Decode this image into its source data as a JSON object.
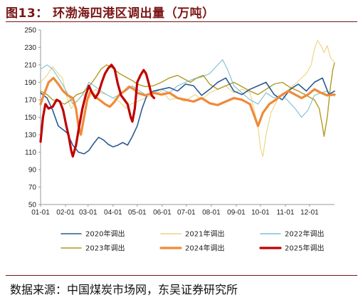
{
  "header": {
    "title": "图13：  环渤海四港区调出量（万吨）"
  },
  "footer": {
    "source": "数据来源：中国煤炭市场网，东吴证券研究所"
  },
  "colors": {
    "title": "#7a1616",
    "s2020": "#2b5a92",
    "s2021": "#efd27c",
    "s2022": "#7bbfd5",
    "s2023": "#b29a23",
    "s2024": "#ef8a3a",
    "s2025": "#c00000"
  },
  "chart_data": {
    "type": "line",
    "title": "环渤海四港区调出量（万吨）",
    "xlabel": "",
    "ylabel": "",
    "xlim": [
      0,
      365
    ],
    "ylim": [
      50,
      250
    ],
    "y_ticks": [
      50,
      70,
      90,
      110,
      130,
      150,
      170,
      190,
      210,
      230,
      250
    ],
    "x_ticks": [
      {
        "label": "01-01",
        "day": 0
      },
      {
        "label": "02-01",
        "day": 31
      },
      {
        "label": "03-01",
        "day": 59
      },
      {
        "label": "04-01",
        "day": 90
      },
      {
        "label": "05-01",
        "day": 120
      },
      {
        "label": "06-01",
        "day": 151
      },
      {
        "label": "07-01",
        "day": 181
      },
      {
        "label": "08-01",
        "day": 212
      },
      {
        "label": "09-01",
        "day": 243
      },
      {
        "label": "10-01",
        "day": 273
      },
      {
        "label": "11-01",
        "day": 304
      },
      {
        "label": "12-01",
        "day": 334
      }
    ],
    "legend_position": "bottom",
    "series": [
      {
        "name": "2020年调出",
        "key": "s2020",
        "width": 1.6,
        "points": [
          [
            0,
            178
          ],
          [
            8,
            172
          ],
          [
            15,
            158
          ],
          [
            22,
            140
          ],
          [
            29,
            135
          ],
          [
            33,
            132
          ],
          [
            40,
            118
          ],
          [
            47,
            110
          ],
          [
            54,
            108
          ],
          [
            60,
            112
          ],
          [
            66,
            120
          ],
          [
            72,
            127
          ],
          [
            78,
            124
          ],
          [
            84,
            119
          ],
          [
            90,
            116
          ],
          [
            96,
            118
          ],
          [
            102,
            121
          ],
          [
            108,
            118
          ],
          [
            114,
            128
          ],
          [
            120,
            140
          ],
          [
            126,
            160
          ],
          [
            132,
            175
          ],
          [
            140,
            180
          ],
          [
            150,
            182
          ],
          [
            160,
            184
          ],
          [
            170,
            180
          ],
          [
            180,
            188
          ],
          [
            190,
            186
          ],
          [
            200,
            175
          ],
          [
            210,
            182
          ],
          [
            220,
            190
          ],
          [
            230,
            195
          ],
          [
            240,
            180
          ],
          [
            250,
            176
          ],
          [
            260,
            182
          ],
          [
            270,
            186
          ],
          [
            280,
            190
          ],
          [
            290,
            176
          ],
          [
            300,
            170
          ],
          [
            310,
            182
          ],
          [
            320,
            188
          ],
          [
            330,
            180
          ],
          [
            340,
            190
          ],
          [
            350,
            195
          ],
          [
            358,
            176
          ],
          [
            365,
            180
          ]
        ]
      },
      {
        "name": "2021年调出",
        "key": "s2021",
        "width": 1.1,
        "points": [
          [
            0,
            190
          ],
          [
            8,
            198
          ],
          [
            15,
            208
          ],
          [
            20,
            202
          ],
          [
            27,
            195
          ],
          [
            33,
            172
          ],
          [
            38,
            160
          ],
          [
            45,
            168
          ],
          [
            52,
            176
          ],
          [
            60,
            172
          ],
          [
            68,
            182
          ],
          [
            75,
            178
          ],
          [
            82,
            176
          ],
          [
            90,
            172
          ],
          [
            98,
            168
          ],
          [
            106,
            160
          ],
          [
            112,
            165
          ],
          [
            120,
            168
          ],
          [
            130,
            172
          ],
          [
            140,
            176
          ],
          [
            150,
            180
          ],
          [
            160,
            170
          ],
          [
            170,
            172
          ],
          [
            178,
            168
          ],
          [
            185,
            172
          ],
          [
            192,
            176
          ],
          [
            200,
            170
          ],
          [
            210,
            178
          ],
          [
            220,
            182
          ],
          [
            230,
            186
          ],
          [
            240,
            178
          ],
          [
            250,
            182
          ],
          [
            260,
            178
          ],
          [
            270,
            140
          ],
          [
            273,
            115
          ],
          [
            276,
            105
          ],
          [
            280,
            130
          ],
          [
            286,
            155
          ],
          [
            294,
            170
          ],
          [
            300,
            176
          ],
          [
            308,
            182
          ],
          [
            316,
            188
          ],
          [
            324,
            195
          ],
          [
            330,
            200
          ],
          [
            336,
            210
          ],
          [
            340,
            228
          ],
          [
            344,
            238
          ],
          [
            348,
            232
          ],
          [
            352,
            224
          ],
          [
            356,
            232
          ],
          [
            360,
            218
          ],
          [
            365,
            213
          ]
        ]
      },
      {
        "name": "2022年调出",
        "key": "s2022",
        "width": 1.1,
        "points": [
          [
            0,
            205
          ],
          [
            8,
            210
          ],
          [
            15,
            205
          ],
          [
            20,
            198
          ],
          [
            27,
            188
          ],
          [
            33,
            178
          ],
          [
            40,
            165
          ],
          [
            47,
            170
          ],
          [
            54,
            178
          ],
          [
            60,
            190
          ],
          [
            68,
            185
          ],
          [
            75,
            180
          ],
          [
            82,
            176
          ],
          [
            90,
            172
          ],
          [
            98,
            176
          ],
          [
            106,
            180
          ],
          [
            114,
            186
          ],
          [
            120,
            182
          ],
          [
            130,
            176
          ],
          [
            140,
            178
          ],
          [
            150,
            182
          ],
          [
            160,
            178
          ],
          [
            170,
            186
          ],
          [
            180,
            190
          ],
          [
            190,
            194
          ],
          [
            200,
            196
          ],
          [
            210,
            200
          ],
          [
            220,
            210
          ],
          [
            226,
            216
          ],
          [
            232,
            205
          ],
          [
            240,
            186
          ],
          [
            250,
            178
          ],
          [
            260,
            170
          ],
          [
            270,
            165
          ],
          [
            280,
            178
          ],
          [
            290,
            172
          ],
          [
            300,
            176
          ],
          [
            308,
            168
          ],
          [
            316,
            160
          ],
          [
            324,
            150
          ],
          [
            332,
            158
          ],
          [
            340,
            175
          ],
          [
            348,
            178
          ],
          [
            356,
            180
          ],
          [
            365,
            174
          ]
        ]
      },
      {
        "name": "2023年调出",
        "key": "s2023",
        "width": 1.4,
        "points": [
          [
            0,
            180
          ],
          [
            8,
            176
          ],
          [
            15,
            170
          ],
          [
            22,
            168
          ],
          [
            30,
            165
          ],
          [
            38,
            170
          ],
          [
            45,
            176
          ],
          [
            52,
            178
          ],
          [
            60,
            185
          ],
          [
            68,
            195
          ],
          [
            75,
            205
          ],
          [
            82,
            210
          ],
          [
            90,
            206
          ],
          [
            98,
            200
          ],
          [
            106,
            196
          ],
          [
            114,
            192
          ],
          [
            120,
            188
          ],
          [
            130,
            185
          ],
          [
            140,
            186
          ],
          [
            150,
            190
          ],
          [
            160,
            195
          ],
          [
            170,
            198
          ],
          [
            178,
            194
          ],
          [
            186,
            190
          ],
          [
            194,
            195
          ],
          [
            202,
            198
          ],
          [
            210,
            188
          ],
          [
            220,
            182
          ],
          [
            230,
            186
          ],
          [
            240,
            190
          ],
          [
            250,
            185
          ],
          [
            260,
            180
          ],
          [
            270,
            176
          ],
          [
            280,
            182
          ],
          [
            290,
            188
          ],
          [
            300,
            190
          ],
          [
            310,
            184
          ],
          [
            320,
            180
          ],
          [
            330,
            175
          ],
          [
            340,
            170
          ],
          [
            346,
            160
          ],
          [
            350,
            140
          ],
          [
            352,
            128
          ],
          [
            356,
            150
          ],
          [
            360,
            185
          ],
          [
            363,
            205
          ],
          [
            365,
            212
          ]
        ]
      },
      {
        "name": "2024年调出",
        "key": "s2024",
        "width": 3.2,
        "points": [
          [
            0,
            165
          ],
          [
            5,
            178
          ],
          [
            10,
            190
          ],
          [
            16,
            195
          ],
          [
            22,
            188
          ],
          [
            28,
            180
          ],
          [
            34,
            175
          ],
          [
            40,
            172
          ],
          [
            44,
            160
          ],
          [
            47,
            140
          ],
          [
            50,
            130
          ],
          [
            54,
            150
          ],
          [
            58,
            170
          ],
          [
            62,
            180
          ],
          [
            66,
            176
          ],
          [
            70,
            172
          ],
          [
            76,
            168
          ],
          [
            80,
            165
          ],
          [
            86,
            162
          ],
          [
            92,
            168
          ],
          [
            98,
            176
          ],
          [
            104,
            180
          ],
          [
            110,
            185
          ],
          [
            116,
            182
          ],
          [
            120,
            178
          ],
          [
            130,
            175
          ],
          [
            140,
            178
          ],
          [
            150,
            176
          ],
          [
            160,
            178
          ],
          [
            170,
            172
          ],
          [
            180,
            170
          ],
          [
            190,
            168
          ],
          [
            200,
            172
          ],
          [
            210,
            166
          ],
          [
            220,
            164
          ],
          [
            230,
            168
          ],
          [
            240,
            172
          ],
          [
            250,
            170
          ],
          [
            260,
            165
          ],
          [
            266,
            150
          ],
          [
            270,
            140
          ],
          [
            276,
            155
          ],
          [
            284,
            165
          ],
          [
            292,
            170
          ],
          [
            300,
            176
          ],
          [
            308,
            180
          ],
          [
            316,
            176
          ],
          [
            324,
            172
          ],
          [
            332,
            176
          ],
          [
            340,
            182
          ],
          [
            348,
            178
          ],
          [
            356,
            175
          ],
          [
            365,
            176
          ]
        ]
      },
      {
        "name": "2025年调出",
        "key": "s2025",
        "width": 3.2,
        "points": [
          [
            0,
            122
          ],
          [
            3,
            150
          ],
          [
            6,
            165
          ],
          [
            10,
            160
          ],
          [
            15,
            162
          ],
          [
            20,
            170
          ],
          [
            24,
            168
          ],
          [
            28,
            158
          ],
          [
            32,
            140
          ],
          [
            35,
            128
          ],
          [
            38,
            112
          ],
          [
            40,
            105
          ],
          [
            44,
            118
          ],
          [
            48,
            140
          ],
          [
            52,
            160
          ],
          [
            56,
            175
          ],
          [
            60,
            186
          ],
          [
            64,
            178
          ],
          [
            68,
            172
          ],
          [
            72,
            178
          ],
          [
            76,
            190
          ],
          [
            80,
            200
          ],
          [
            84,
            206
          ],
          [
            88,
            210
          ],
          [
            92,
            205
          ],
          [
            96,
            188
          ],
          [
            100,
            175
          ],
          [
            104,
            170
          ],
          [
            108,
            165
          ],
          [
            112,
            150
          ],
          [
            114,
            145
          ],
          [
            117,
            160
          ],
          [
            120,
            190
          ],
          [
            124,
            198
          ],
          [
            128,
            204
          ],
          [
            131,
            200
          ],
          [
            134,
            190
          ],
          [
            138,
            175
          ],
          [
            141,
            172
          ]
        ]
      }
    ]
  }
}
